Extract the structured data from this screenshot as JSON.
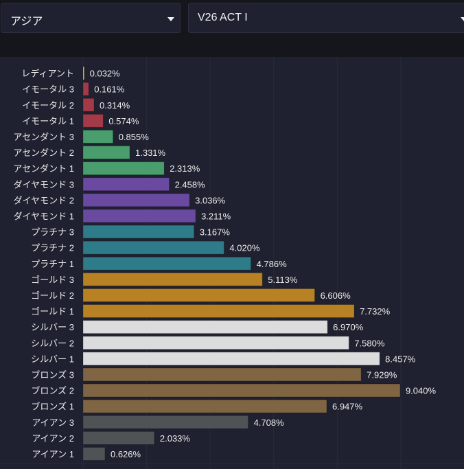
{
  "filters": {
    "region": "アジア",
    "act": "V26 ACT I"
  },
  "chart_data": {
    "type": "bar",
    "orientation": "horizontal",
    "title": "",
    "xlabel": "",
    "ylabel": "",
    "unit": "%",
    "grid": true,
    "categories": [
      "レディアント",
      "イモータル 3",
      "イモータル 2",
      "イモータル 1",
      "アセンダント 3",
      "アセンダント 2",
      "アセンダント 1",
      "ダイヤモンド 3",
      "ダイヤモンド 2",
      "ダイヤモンド 1",
      "プラチナ 3",
      "プラチナ 2",
      "プラチナ 1",
      "ゴールド 3",
      "ゴールド 2",
      "ゴールド 1",
      "シルバー 3",
      "シルバー 2",
      "シルバー 1",
      "ブロンズ 3",
      "ブロンズ 2",
      "ブロンズ 1",
      "アイアン 3",
      "アイアン 2",
      "アイアン 1"
    ],
    "values": [
      0.032,
      0.161,
      0.314,
      0.574,
      0.855,
      1.331,
      2.313,
      2.458,
      3.036,
      3.211,
      3.167,
      4.02,
      4.786,
      5.113,
      6.606,
      7.732,
      6.97,
      7.58,
      8.457,
      7.929,
      9.04,
      6.947,
      4.708,
      2.033,
      0.626
    ],
    "value_labels": [
      "0.032%",
      "0.161%",
      "0.314%",
      "0.574%",
      "0.855%",
      "1.331%",
      "2.313%",
      "2.458%",
      "3.036%",
      "3.211%",
      "3.167%",
      "4.020%",
      "4.786%",
      "5.113%",
      "6.606%",
      "7.732%",
      "6.970%",
      "7.580%",
      "8.457%",
      "7.929%",
      "9.040%",
      "6.947%",
      "4.708%",
      "2.033%",
      "0.626%"
    ],
    "colors": [
      "#e6c75a",
      "#a33a47",
      "#a33a47",
      "#a33a47",
      "#4a9e6e",
      "#4a9e6e",
      "#4a9e6e",
      "#6a4aa0",
      "#6a4aa0",
      "#6a4aa0",
      "#2e7b8a",
      "#2e7b8a",
      "#2e7b8a",
      "#b88224",
      "#b88224",
      "#b88224",
      "#dcdcdc",
      "#dcdcdc",
      "#dcdcdc",
      "#7f6543",
      "#7f6543",
      "#7f6543",
      "#4f5355",
      "#4f5355",
      "#4f5355"
    ],
    "xlim": [
      0,
      10.87
    ]
  }
}
